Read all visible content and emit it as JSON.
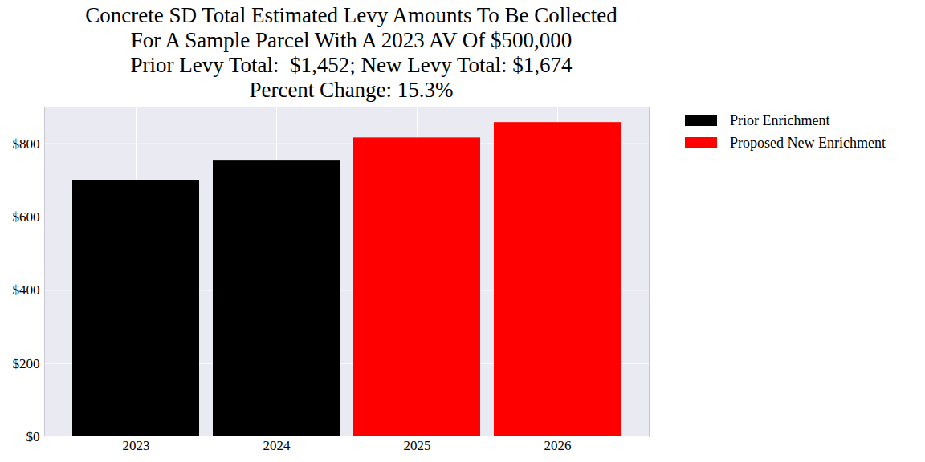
{
  "chart_data": {
    "type": "bar",
    "title": "Concrete SD Total Estimated Levy Amounts To Be Collected\nFor A Sample Parcel With A 2023 AV Of $500,000\nPrior Levy Total:  $1,452; New Levy Total: $1,674\nPercent Change: 15.3%",
    "categories": [
      "2023",
      "2024",
      "2025",
      "2026"
    ],
    "series": [
      {
        "name": "Prior Enrichment",
        "color": "#000000",
        "values": [
          699,
          753,
          null,
          null
        ]
      },
      {
        "name": "Proposed New Enrichment",
        "color": "#ff0000",
        "values": [
          null,
          null,
          816,
          858
        ]
      }
    ],
    "ylim": [
      0,
      900
    ],
    "yticks": [
      {
        "value": 0,
        "label": "$0"
      },
      {
        "value": 200,
        "label": "$200"
      },
      {
        "value": 400,
        "label": "$400"
      },
      {
        "value": 600,
        "label": "$600"
      },
      {
        "value": 800,
        "label": "$800"
      }
    ],
    "grid": true,
    "legend": "right"
  }
}
